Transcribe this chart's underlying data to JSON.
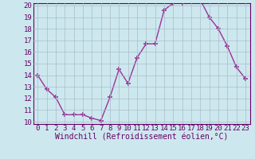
{
  "x": [
    0,
    1,
    2,
    3,
    4,
    5,
    6,
    7,
    8,
    9,
    10,
    11,
    12,
    13,
    14,
    15,
    16,
    17,
    18,
    19,
    20,
    21,
    22,
    23
  ],
  "y": [
    14.0,
    12.8,
    12.1,
    10.6,
    10.6,
    10.6,
    10.3,
    10.1,
    12.1,
    14.5,
    13.3,
    15.5,
    16.7,
    16.7,
    19.6,
    20.2,
    20.2,
    20.5,
    20.5,
    19.0,
    18.0,
    16.5,
    14.7,
    13.7
  ],
  "line_color": "#993399",
  "marker": "+",
  "marker_size": 5,
  "marker_lw": 1.2,
  "line_width": 1.0,
  "bg_color": "#cce8ee",
  "grid_color": "#aabbcc",
  "xlabel": "Windchill (Refroidissement éolien,°C)",
  "ylim": [
    10,
    20
  ],
  "xlim": [
    -0.5,
    23.5
  ],
  "yticks": [
    10,
    11,
    12,
    13,
    14,
    15,
    16,
    17,
    18,
    19,
    20
  ],
  "xticks": [
    0,
    1,
    2,
    3,
    4,
    5,
    6,
    7,
    8,
    9,
    10,
    11,
    12,
    13,
    14,
    15,
    16,
    17,
    18,
    19,
    20,
    21,
    22,
    23
  ],
  "tick_label_color": "#660066",
  "axis_color": "#660066",
  "xlabel_color": "#660066",
  "xlabel_fontsize": 7.0,
  "tick_fontsize": 6.5,
  "spine_color": "#660066"
}
